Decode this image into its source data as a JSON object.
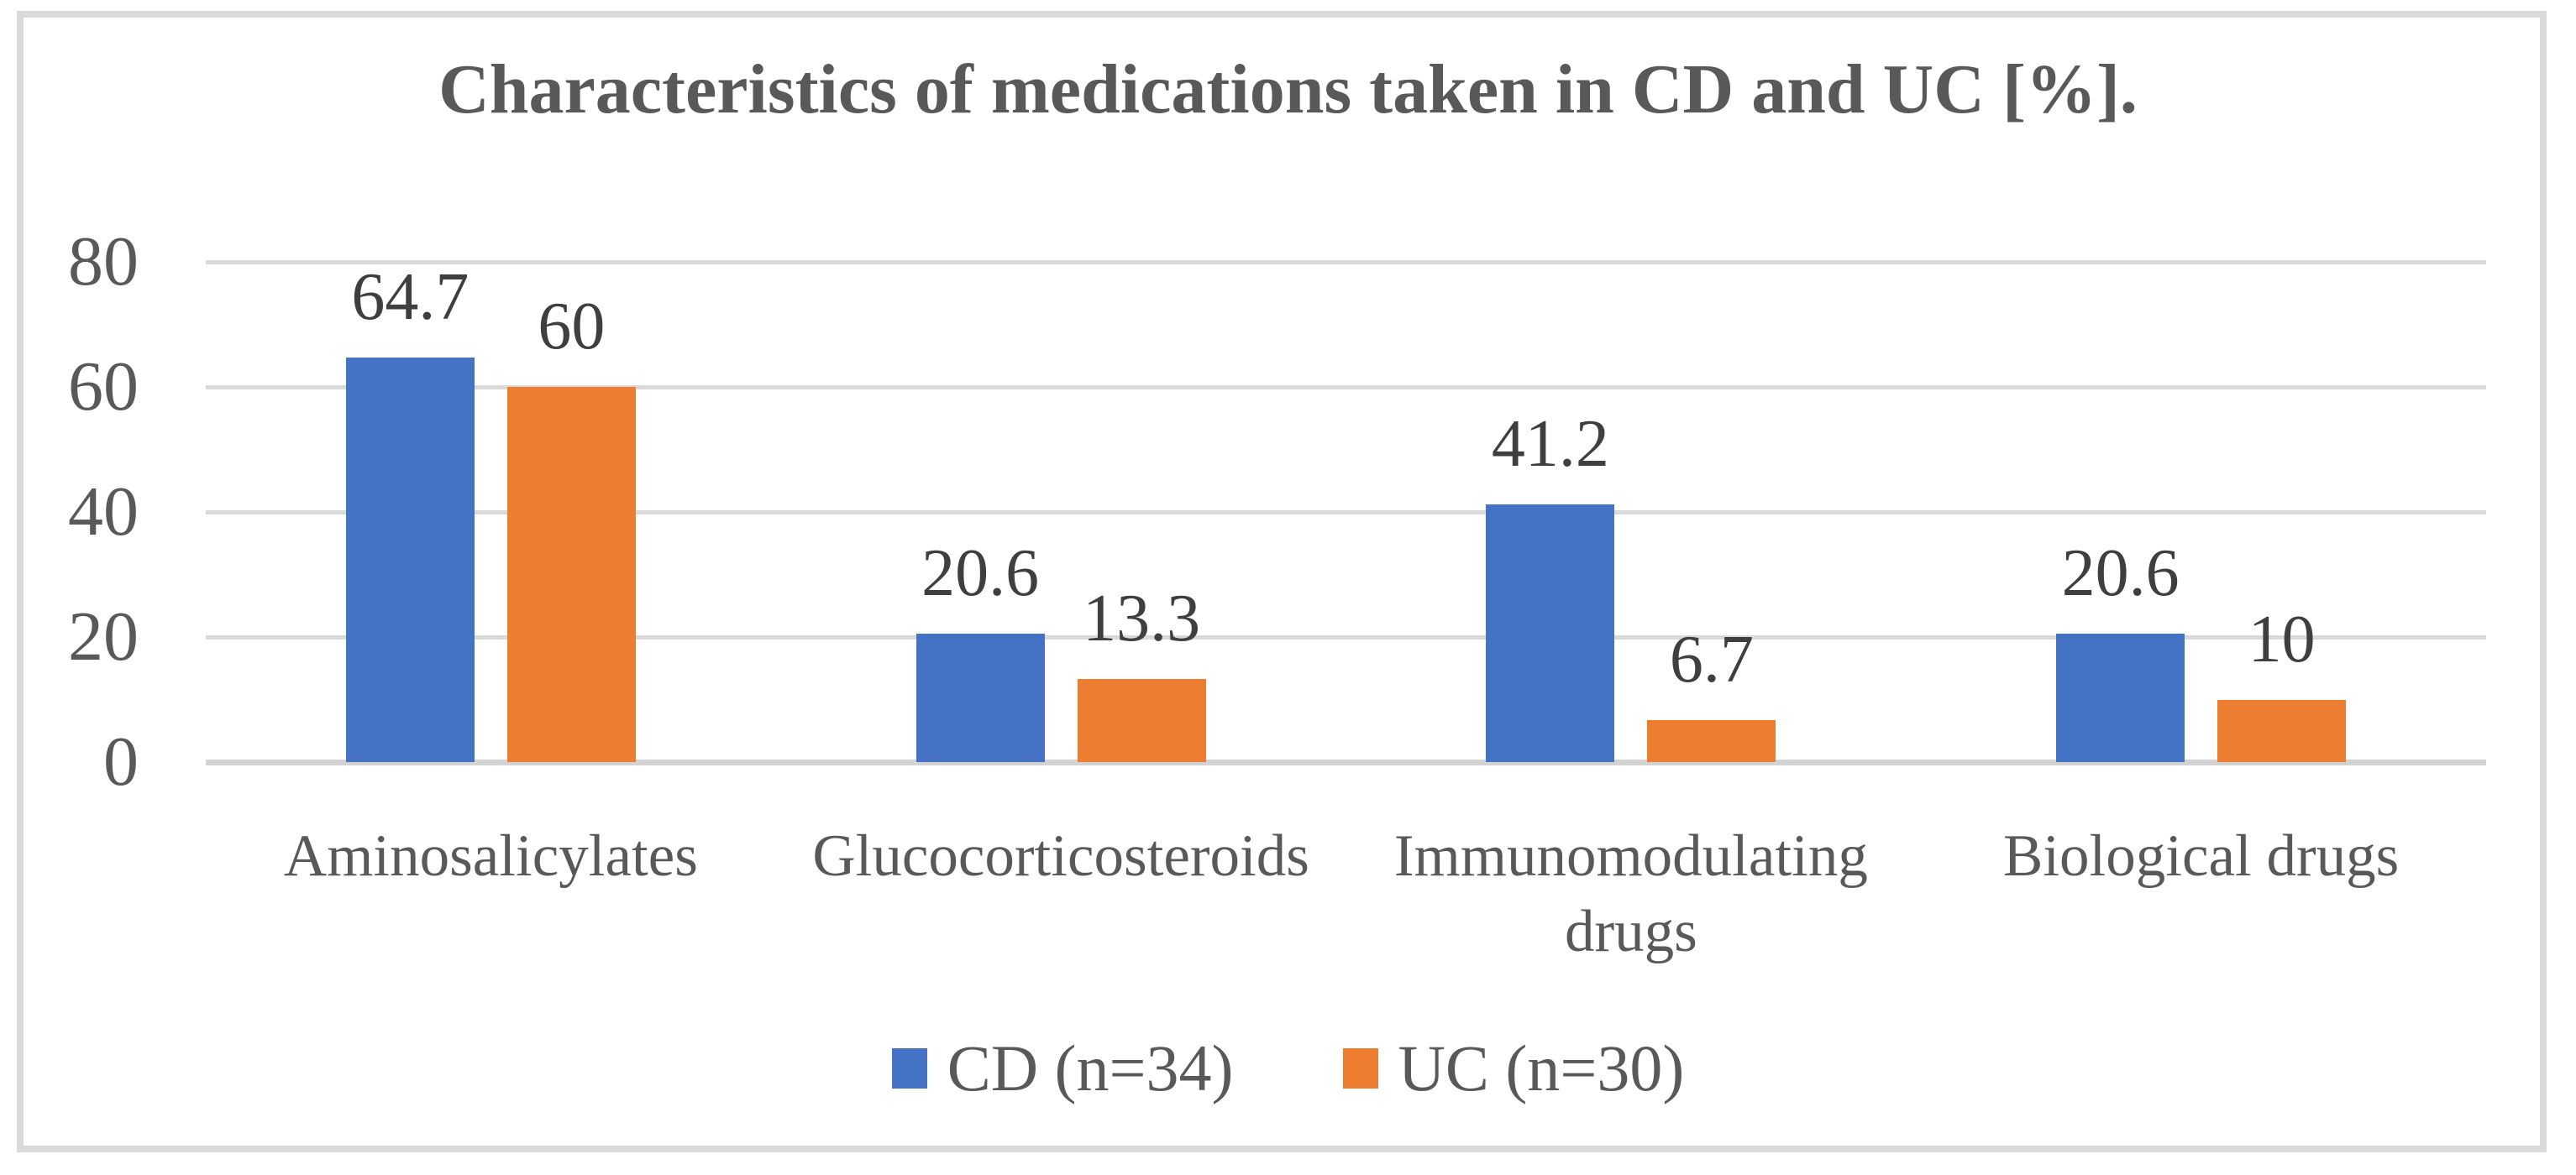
{
  "chart_data": {
    "type": "bar",
    "title": "Characteristics of medications taken in CD and UC [%].",
    "categories": [
      "Aminosalicylates",
      "Glucocorticosteroids",
      "Immunomodulating drugs",
      "Biological drugs"
    ],
    "series": [
      {
        "name": "CD (n=34)",
        "color": "#4472C4",
        "values": [
          64.7,
          20.6,
          41.2,
          20.6
        ],
        "labels": [
          "64.7",
          "20.6",
          "41.2",
          "20.6"
        ]
      },
      {
        "name": "UC (n=30)",
        "color": "#ED7D31",
        "values": [
          60,
          13.3,
          6.7,
          10
        ],
        "labels": [
          "60",
          "13.3",
          "6.7",
          "10"
        ]
      }
    ],
    "ylabel": "",
    "xlabel": "",
    "ylim": [
      0,
      80
    ],
    "yticks": [
      0,
      20,
      40,
      60,
      80
    ],
    "grid": true,
    "gridlines_horizontal": true,
    "legend_position": "bottom"
  },
  "style": {
    "grid_color": "#D9D9D9",
    "axis_line_color": "#D3D3D3",
    "frame_color": "#D9D9D9",
    "title_color": "#595959",
    "tick_color": "#595959",
    "data_label_color": "#3F3F3F",
    "background": "#FFFFFF"
  }
}
